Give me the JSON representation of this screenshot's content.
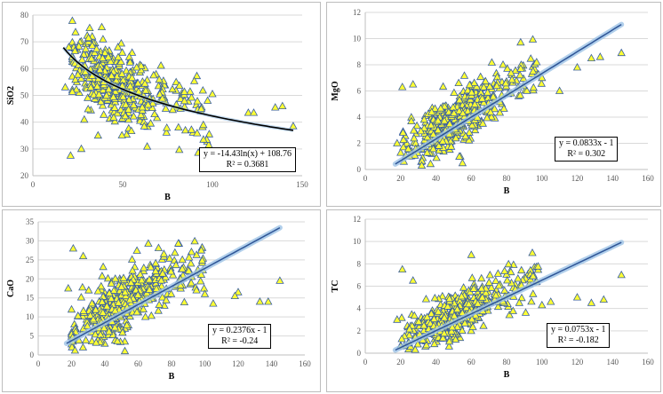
{
  "colors": {
    "marker_fill": "#ffff33",
    "marker_stroke": "#3a5fa0",
    "trend_glow": "#9dc3e6",
    "trend_line": "#2e5597",
    "grid": "#d9d9d9"
  },
  "chart_data": [
    {
      "type": "scatter",
      "title": "",
      "xlabel": "B",
      "ylabel": "SiO2",
      "xlim": [
        0,
        150
      ],
      "ylim": [
        20,
        80
      ],
      "xticks": [
        "0",
        "50",
        "100",
        "150"
      ],
      "yticks": [
        "20",
        "30",
        "40",
        "50",
        "60",
        "70",
        "80"
      ],
      "grid": "horizontal",
      "trendline": {
        "form": "log",
        "a": -14.43,
        "b": 108.76,
        "x_range": [
          17,
          145
        ],
        "style": "black"
      },
      "equation": "y = -14.43ln(x) + 108.76",
      "r2": "R² = 0.3681",
      "outliers": [
        [
          18,
          53
        ],
        [
          21,
          27.5
        ],
        [
          27,
          30
        ],
        [
          95,
          33.5
        ],
        [
          145,
          38.5
        ],
        [
          135,
          45.5
        ],
        [
          139,
          46
        ],
        [
          120,
          43.5
        ],
        [
          123,
          43.5
        ],
        [
          100,
          50.5
        ],
        [
          20,
          68
        ]
      ],
      "cloud": {
        "x_range": [
          22,
          100
        ],
        "x_mode": 45,
        "sigma": 6.5,
        "count": 440
      }
    },
    {
      "type": "scatter",
      "title": "",
      "xlabel": "B",
      "ylabel": "MgO",
      "xlim": [
        0,
        160
      ],
      "ylim": [
        0,
        12
      ],
      "xticks": [
        "0",
        "20",
        "40",
        "60",
        "80",
        "100",
        "120",
        "140",
        "160"
      ],
      "yticks": [
        "0",
        "2",
        "4",
        "6",
        "8",
        "10",
        "12"
      ],
      "grid": "horizontal",
      "trendline": {
        "form": "linear",
        "m": 0.0833,
        "c": -1,
        "x_range": [
          17,
          145
        ],
        "style": "blue"
      },
      "equation": "y = 0.0833x - 1",
      "r2": "R² = 0.302",
      "outliers": [
        [
          18,
          2
        ],
        [
          21,
          6.3
        ],
        [
          27,
          6.5
        ],
        [
          78,
          8
        ],
        [
          88,
          7.7
        ],
        [
          97,
          8.2
        ],
        [
          95,
          7.5
        ],
        [
          100,
          7
        ],
        [
          120,
          7.8
        ],
        [
          128,
          8.5
        ],
        [
          133,
          8.6
        ],
        [
          145,
          8.9
        ],
        [
          110,
          6
        ]
      ],
      "cloud": {
        "x_range": [
          20,
          100
        ],
        "x_mode": 50,
        "sigma": 1.05,
        "count": 440
      }
    },
    {
      "type": "scatter",
      "title": "",
      "xlabel": "B",
      "ylabel": "CaO",
      "xlim": [
        0,
        160
      ],
      "ylim": [
        0,
        35
      ],
      "xticks": [
        "0",
        "20",
        "40",
        "60",
        "80",
        "100",
        "120",
        "140",
        "160"
      ],
      "yticks": [
        "0",
        "5",
        "10",
        "15",
        "20",
        "25",
        "30",
        "35"
      ],
      "grid": "horizontal",
      "trendline": {
        "form": "linear",
        "m": 0.2376,
        "c": -1,
        "x_range": [
          17,
          145
        ],
        "style": "blue"
      },
      "equation": "y = 0.2376x - 1",
      "r2": "R² = -0.24",
      "outliers": [
        [
          18,
          17.5
        ],
        [
          21,
          28
        ],
        [
          27,
          26
        ],
        [
          52,
          1
        ],
        [
          95,
          17
        ],
        [
          100,
          16
        ],
        [
          105,
          13.5
        ],
        [
          120,
          16.5
        ],
        [
          133,
          14
        ],
        [
          138,
          14
        ],
        [
          145,
          19.5
        ],
        [
          118,
          15.5
        ]
      ],
      "cloud": {
        "x_range": [
          20,
          100
        ],
        "x_mode": 50,
        "sigma": 3.8,
        "count": 440
      }
    },
    {
      "type": "scatter",
      "title": "",
      "xlabel": "B",
      "ylabel": "TC",
      "xlim": [
        0,
        160
      ],
      "ylim": [
        0,
        12
      ],
      "xticks": [
        "0",
        "20",
        "40",
        "60",
        "80",
        "100",
        "120",
        "140",
        "160"
      ],
      "yticks": [
        "0",
        "2",
        "4",
        "6",
        "8",
        "10",
        "12"
      ],
      "grid": "horizontal",
      "trendline": {
        "form": "linear",
        "m": 0.0753,
        "c": -1,
        "x_range": [
          17,
          145
        ],
        "style": "blue"
      },
      "equation": "y = 0.0753x - 1",
      "r2": "R² = -0.182",
      "outliers": [
        [
          18,
          3
        ],
        [
          21,
          7.5
        ],
        [
          27,
          6.5
        ],
        [
          60,
          8.8
        ],
        [
          95,
          5.3
        ],
        [
          100,
          4.3
        ],
        [
          105,
          4.6
        ],
        [
          120,
          5
        ],
        [
          128,
          4.5
        ],
        [
          135,
          4.8
        ],
        [
          145,
          7
        ]
      ],
      "cloud": {
        "x_range": [
          20,
          100
        ],
        "x_mode": 52,
        "sigma": 1.0,
        "count": 440
      }
    }
  ]
}
